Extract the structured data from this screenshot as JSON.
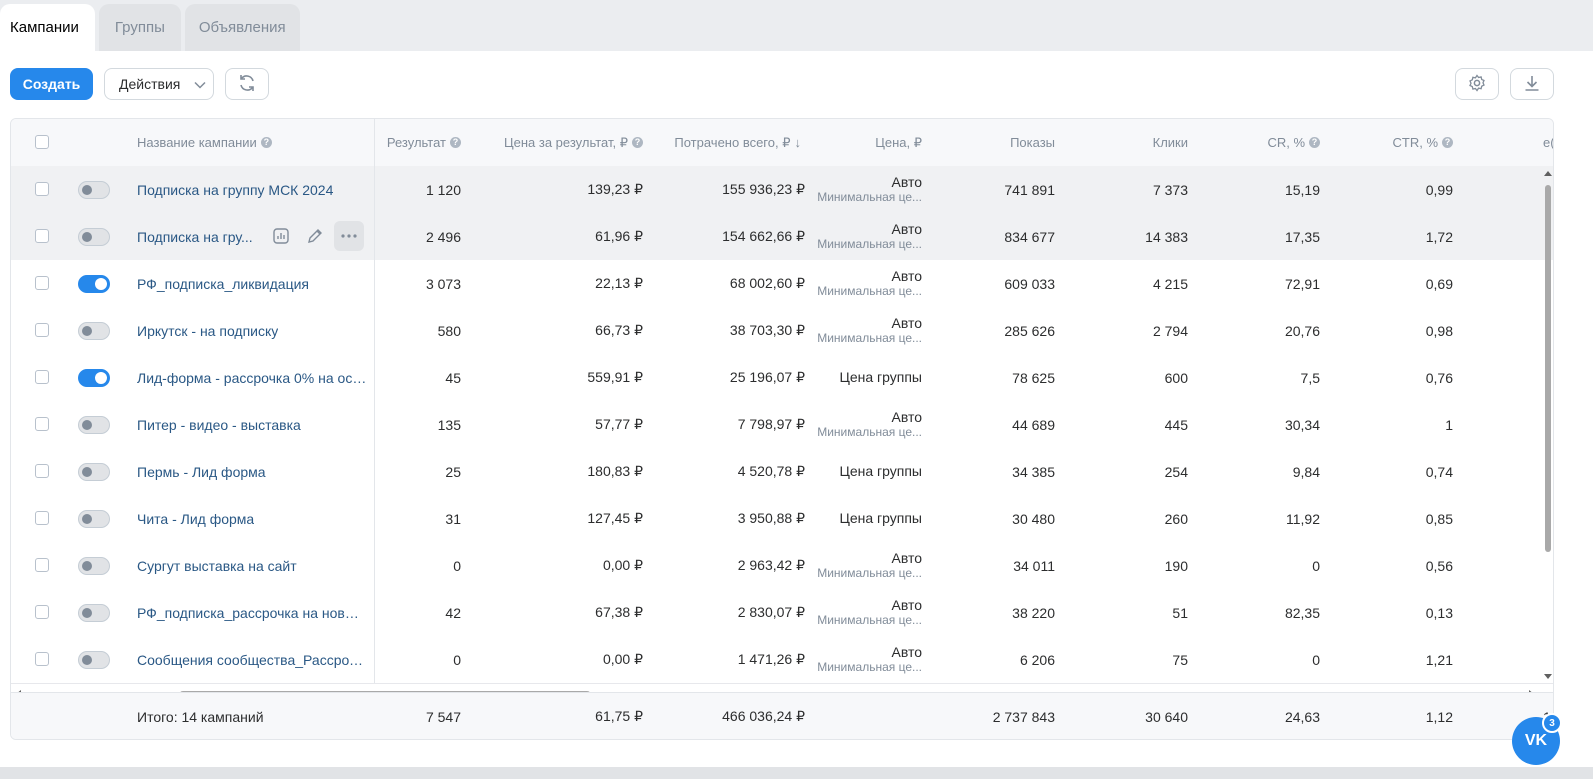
{
  "tabs": [
    {
      "label": "Кампании",
      "active": true
    },
    {
      "label": "Группы",
      "active": false
    },
    {
      "label": "Объявления",
      "active": false
    }
  ],
  "toolbar": {
    "create_label": "Создать",
    "actions_label": "Действия"
  },
  "colors": {
    "accent": "#2688eb",
    "link": "#2a5885",
    "muted": "#818c99"
  },
  "columns": {
    "name": "Название кампании",
    "result": "Результат",
    "cost_per_result": "Цена за результат, ₽",
    "spent": "Потрачено всего, ₽",
    "price": "Цена, ₽",
    "impressions": "Показы",
    "clicks": "Клики",
    "cr": "CR, %",
    "ctr": "CTR, %",
    "extra": "е("
  },
  "rows": [
    {
      "name": "Подписка на группу МСК 2024",
      "on": false,
      "result": "1 120",
      "cpr": "139,23 ₽",
      "spent": "155 936,23 ₽",
      "price": "Авто",
      "price_sub": "Минимальная це...",
      "impressions": "741 891",
      "clicks": "7 373",
      "cr": "15,19",
      "ctr": "0,99"
    },
    {
      "name": "Подписка на гру...",
      "on": false,
      "result": "2 496",
      "cpr": "61,96 ₽",
      "spent": "154 662,66 ₽",
      "price": "Авто",
      "price_sub": "Минимальная це...",
      "impressions": "834 677",
      "clicks": "14 383",
      "cr": "17,35",
      "ctr": "1,72"
    },
    {
      "name": "РФ_подписка_ликвидация",
      "on": true,
      "result": "3 073",
      "cpr": "22,13 ₽",
      "spent": "68 002,60 ₽",
      "price": "Авто",
      "price_sub": "Минимальная це...",
      "impressions": "609 033",
      "clicks": "4 215",
      "cr": "72,91",
      "ctr": "0,69"
    },
    {
      "name": "Иркутск - на подписку",
      "on": false,
      "result": "580",
      "cpr": "66,73 ₽",
      "spent": "38 703,30 ₽",
      "price": "Авто",
      "price_sub": "Минимальная це...",
      "impressions": "285 626",
      "clicks": "2 794",
      "cr": "20,76",
      "ctr": "0,98"
    },
    {
      "name": "Лид-форма - рассрочка 0% на осе...",
      "on": true,
      "result": "45",
      "cpr": "559,91 ₽",
      "spent": "25 196,07 ₽",
      "price": "Цена группы",
      "price_sub": "",
      "impressions": "78 625",
      "clicks": "600",
      "cr": "7,5",
      "ctr": "0,76"
    },
    {
      "name": "Питер - видео - выставка",
      "on": false,
      "result": "135",
      "cpr": "57,77 ₽",
      "spent": "7 798,97 ₽",
      "price": "Авто",
      "price_sub": "Минимальная це...",
      "impressions": "44 689",
      "clicks": "445",
      "cr": "30,34",
      "ctr": "1"
    },
    {
      "name": "Пермь - Лид форма",
      "on": false,
      "result": "25",
      "cpr": "180,83 ₽",
      "spent": "4 520,78 ₽",
      "price": "Цена группы",
      "price_sub": "",
      "impressions": "34 385",
      "clicks": "254",
      "cr": "9,84",
      "ctr": "0,74"
    },
    {
      "name": "Чита - Лид форма",
      "on": false,
      "result": "31",
      "cpr": "127,45 ₽",
      "spent": "3 950,88 ₽",
      "price": "Цена группы",
      "price_sub": "",
      "impressions": "30 480",
      "clicks": "260",
      "cr": "11,92",
      "ctr": "0,85"
    },
    {
      "name": "Сургут выставка на сайт",
      "on": false,
      "result": "0",
      "cpr": "0,00 ₽",
      "spent": "2 963,42 ₽",
      "price": "Авто",
      "price_sub": "Минимальная це...",
      "impressions": "34 011",
      "clicks": "190",
      "cr": "0",
      "ctr": "0,56"
    },
    {
      "name": "РФ_подписка_рассрочка на новый...",
      "on": false,
      "result": "42",
      "cpr": "67,38 ₽",
      "spent": "2 830,07 ₽",
      "price": "Авто",
      "price_sub": "Минимальная це...",
      "impressions": "38 220",
      "clicks": "51",
      "cr": "82,35",
      "ctr": "0,13"
    },
    {
      "name": "Сообщения сообщества_Рассрочк...",
      "on": false,
      "result": "0",
      "cpr": "0,00 ₽",
      "spent": "1 471,26 ₽",
      "price": "Авто",
      "price_sub": "Минимальная це...",
      "impressions": "6 206",
      "clicks": "75",
      "cr": "0",
      "ctr": "1,21"
    }
  ],
  "totals": {
    "label": "Итого: 14 кампаний",
    "result": "7 547",
    "cpr": "61,75 ₽",
    "spent": "466 036,24 ₽",
    "impressions": "2 737 843",
    "clicks": "30 640",
    "cr": "24,63",
    "ctr": "1,12",
    "extra": "1("
  },
  "widget": {
    "label": "VK",
    "badge": "3"
  }
}
